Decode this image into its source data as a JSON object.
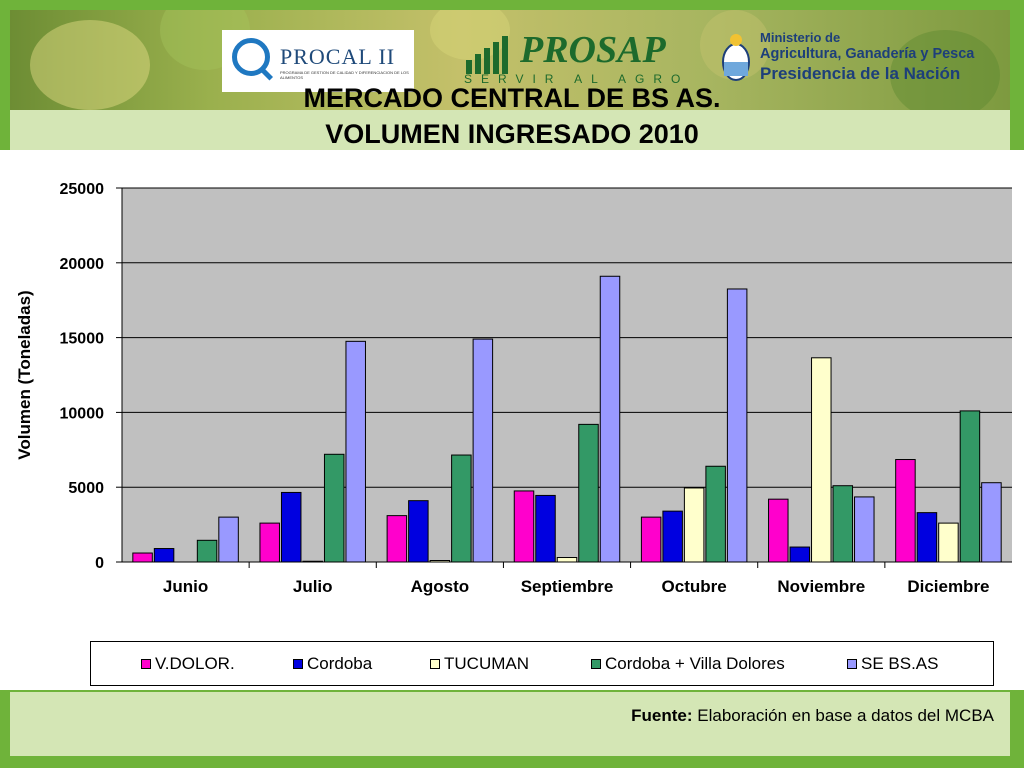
{
  "slide": {
    "title_line1": "MERCADO CENTRAL DE BS AS.",
    "title_line2": "VOLUMEN INGRESADO 2010",
    "source_label": "Fuente:",
    "source_text": " Elaboración en base a datos del MCBA"
  },
  "logos": {
    "procal": "PROCAL II",
    "procal_sub": "PROGRAMA DE GESTION DE CALIDAD Y DIFERENCIACION DE LOS ALIMENTOS",
    "prosap": "PROSAP",
    "prosap_sub": "SERVIR AL AGRO",
    "ministry_line1": "Ministerio de",
    "ministry_line2": "Agricultura, Ganadería y Pesca",
    "ministry_line3": "Presidencia de la Nación"
  },
  "colors": {
    "plot_bg": "#c0c0c0",
    "V.DOLOR.": "#ff00cc",
    "Cordoba": "#0000e0",
    "TUCUMAN": "#ffffcc",
    "Cordoba + Villa Dolores": "#339966",
    "SE BS.AS": "#9999ff"
  },
  "chart_data": {
    "type": "bar",
    "title": "",
    "xlabel": "",
    "ylabel": "Volumen (Toneladas)",
    "ylim": [
      0,
      25000
    ],
    "yticks": [
      0,
      5000,
      10000,
      15000,
      20000,
      25000
    ],
    "grid": true,
    "legend_position": "bottom",
    "categories": [
      "Junio",
      "Julio",
      "Agosto",
      "Septiembre",
      "Octubre",
      "Noviembre",
      "Diciembre"
    ],
    "series": [
      {
        "name": "V.DOLOR.",
        "values": [
          600,
          2600,
          3100,
          4750,
          3000,
          4200,
          6850
        ]
      },
      {
        "name": "Cordoba",
        "values": [
          900,
          4650,
          4100,
          4450,
          3400,
          1000,
          3300
        ]
      },
      {
        "name": "TUCUMAN",
        "values": [
          0,
          50,
          100,
          300,
          4950,
          13650,
          2600
        ]
      },
      {
        "name": "Cordoba + Villa Dolores",
        "values": [
          1450,
          7200,
          7150,
          9200,
          6400,
          5100,
          10100
        ]
      },
      {
        "name": "SE BS.AS",
        "values": [
          3000,
          14750,
          14900,
          19100,
          18250,
          4350,
          5300
        ]
      }
    ]
  }
}
